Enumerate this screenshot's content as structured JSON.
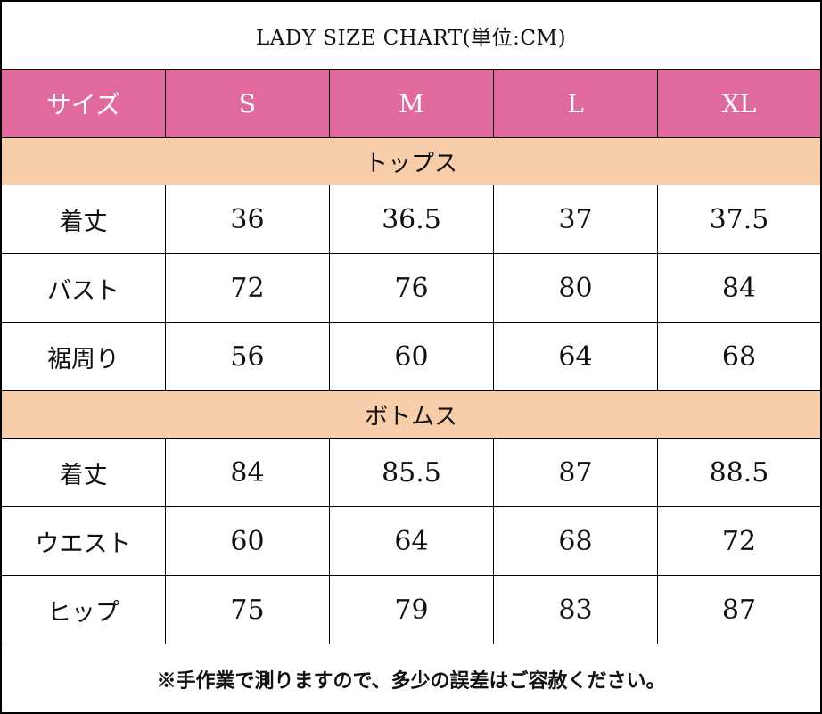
{
  "title": "LADY SIZE CHART(単位:CM)",
  "header": {
    "label": "サイズ",
    "sizes": [
      "S",
      "M",
      "L",
      "XL"
    ]
  },
  "sections": [
    {
      "name": "トップス",
      "rows": [
        {
          "label": "着丈",
          "values": [
            "36",
            "36.5",
            "37",
            "37.5"
          ]
        },
        {
          "label": "バスト",
          "values": [
            "72",
            "76",
            "80",
            "84"
          ]
        },
        {
          "label": "裾周り",
          "values": [
            "56",
            "60",
            "64",
            "68"
          ]
        }
      ]
    },
    {
      "name": "ボトムス",
      "rows": [
        {
          "label": "着丈",
          "values": [
            "84",
            "85.5",
            "87",
            "88.5"
          ]
        },
        {
          "label": "ウエスト",
          "values": [
            "60",
            "64",
            "68",
            "72"
          ]
        },
        {
          "label": "ヒップ",
          "values": [
            "75",
            "79",
            "83",
            "87"
          ]
        }
      ]
    }
  ],
  "note": "※手作業で測りますので、多少の誤差はご容赦ください。",
  "colors": {
    "header_bg": "#e0699d",
    "section_bg": "#f8cda9",
    "border": "#000000"
  }
}
